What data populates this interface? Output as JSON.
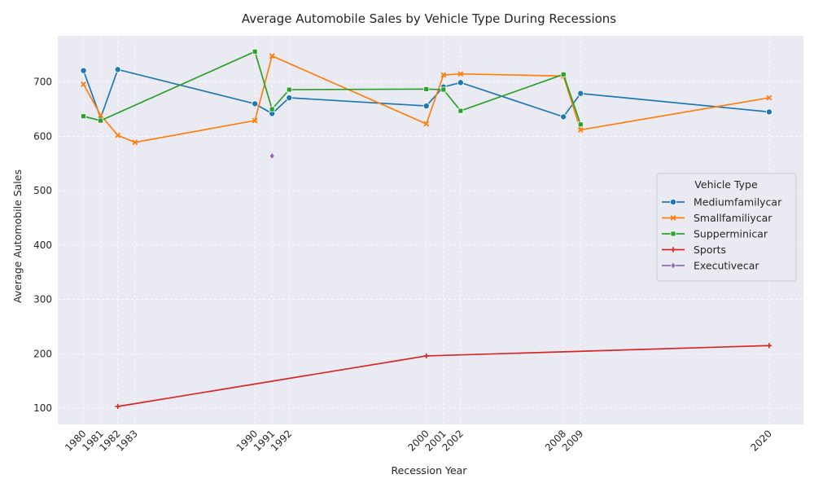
{
  "chart_data": {
    "type": "line",
    "title": "Average Automobile Sales by Vehicle Type During Recessions",
    "xlabel": "Recession Year",
    "ylabel": "Average Automobile Sales",
    "xlim": [
      1978.5,
      2022.0
    ],
    "ylim": [
      70,
      785
    ],
    "x_ticks": [
      1980,
      1981,
      1982,
      1983,
      1990,
      1991,
      1992,
      2000,
      2001,
      2002,
      2008,
      2009,
      2020
    ],
    "y_ticks": [
      100,
      200,
      300,
      400,
      500,
      600,
      700
    ],
    "grid": true,
    "legend": {
      "title": "Vehicle Type",
      "placement": "center-right"
    },
    "colors": {
      "background": "#eaeaf2",
      "grid": "#ffffff",
      "Mediumfamilycar": "#1f77b4",
      "Smallfamiliycar": "#ff7f0e",
      "Supperminicar": "#2ca02c",
      "Sports": "#d62728",
      "Executivecar": "#9467bd"
    },
    "series": [
      {
        "name": "Mediumfamilycar",
        "marker": "circle",
        "x": [
          1980,
          1981,
          1982,
          1990,
          1991,
          1992,
          2000,
          2001,
          2002,
          2008,
          2009,
          2020
        ],
        "y": [
          721,
          634,
          723,
          660,
          642,
          671,
          656,
          691,
          699,
          636,
          679,
          645
        ]
      },
      {
        "name": "Smallfamiliycar",
        "marker": "x",
        "x": [
          1980,
          1981,
          1982,
          1983,
          1990,
          1991,
          2000,
          2001,
          2002,
          2008,
          2009,
          2020
        ],
        "y": [
          696,
          639,
          602,
          589,
          629,
          748,
          623,
          713,
          715,
          711,
          612,
          671
        ]
      },
      {
        "name": "Supperminicar",
        "marker": "square",
        "x": [
          1980,
          1981,
          1990,
          1991,
          1992,
          2000,
          2001,
          2002,
          2008,
          2009
        ],
        "y": [
          637,
          629,
          756,
          650,
          686,
          687,
          686,
          647,
          714,
          622
        ]
      },
      {
        "name": "Sports",
        "marker": "plus",
        "x": [
          1982,
          2000,
          2020
        ],
        "y": [
          103,
          196,
          215
        ]
      },
      {
        "name": "Executivecar",
        "marker": "diamond",
        "x": [
          1991
        ],
        "y": [
          564
        ]
      }
    ]
  }
}
